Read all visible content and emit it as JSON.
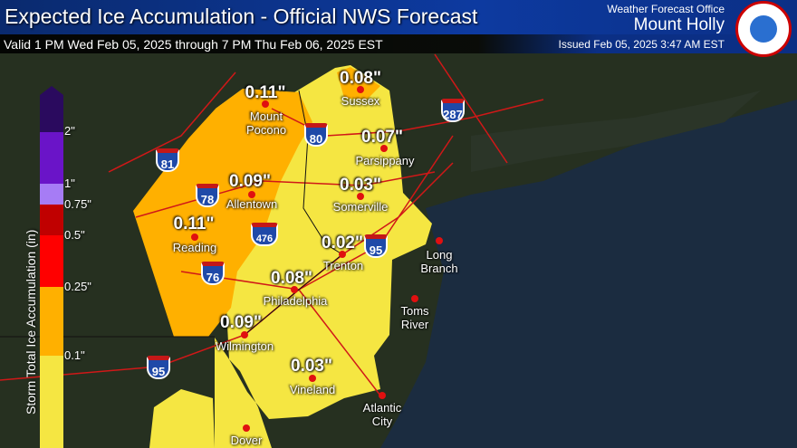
{
  "header": {
    "title": "Expected Ice Accumulation - Official NWS Forecast",
    "valid": "Valid 1 PM Wed Feb 05, 2025 through 7 PM Thu Feb 06, 2025 EST",
    "office_label": "Weather Forecast Office",
    "office_name": "Mount Holly",
    "issued": "Issued Feb 05, 2025 3:47 AM EST",
    "logo_text": "NATIONAL WEATHER SERVICE"
  },
  "legend": {
    "title": "Storm Total Ice Accumulation (in)",
    "bins": [
      {
        "label": "2\"",
        "color": "#2a0a5e"
      },
      {
        "label": "1\"",
        "color": "#6a14c8"
      },
      {
        "label": "0.75\"",
        "color": "#a67cf5"
      },
      {
        "label": "0.5\"",
        "color": "#c00000"
      },
      {
        "label": "0.25\"",
        "color": "#ff0000"
      },
      {
        "label": "0.1\"",
        "color": "#ffb000"
      },
      {
        "label": "",
        "color": "#f5e642"
      }
    ]
  },
  "forecasts": [
    {
      "city": "Mount Pocono",
      "value": "0.11\""
    },
    {
      "city": "Sussex",
      "value": "0.08\""
    },
    {
      "city": "Parsippany",
      "value": "0.07\""
    },
    {
      "city": "Allentown",
      "value": "0.09\""
    },
    {
      "city": "Somerville",
      "value": "0.03\""
    },
    {
      "city": "Reading",
      "value": "0.11\""
    },
    {
      "city": "Trenton",
      "value": "0.02\""
    },
    {
      "city": "Philadelphia",
      "value": "0.08\""
    },
    {
      "city": "Wilmington",
      "value": "0.09\""
    },
    {
      "city": "Vineland",
      "value": "0.03\""
    }
  ],
  "other_cities": [
    "Long Branch",
    "Toms River",
    "Atlantic City",
    "Dover"
  ],
  "interstates": [
    "81",
    "287",
    "80",
    "78",
    "476",
    "95",
    "76",
    "95"
  ],
  "colors": {
    "land": "#263020",
    "ocean": "#1b2c40",
    "roads": "#d01818"
  }
}
